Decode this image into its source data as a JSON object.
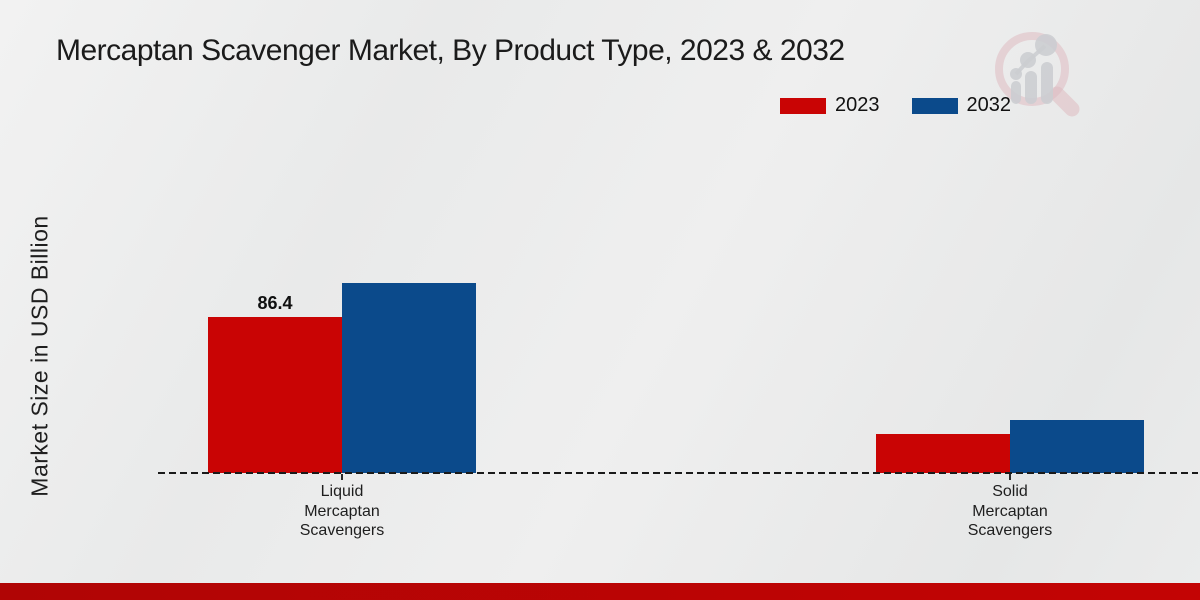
{
  "title": "Mercaptan Scavenger Market, By Product Type, 2023 & 2032",
  "ylabel": "Market Size in USD Billion",
  "chart_data": {
    "type": "bar",
    "title": "Mercaptan Scavenger Market, By Product Type, 2023 & 2032",
    "xlabel": "",
    "ylabel": "Market Size in USD Billion",
    "categories": [
      "Liquid Mercaptan Scavengers",
      "Solid Mercaptan Scavengers"
    ],
    "category_lines": [
      [
        "Liquid",
        "Mercaptan",
        "Scavengers"
      ],
      [
        "Solid",
        "Mercaptan",
        "Scavengers"
      ]
    ],
    "series": [
      {
        "name": "2023",
        "color": "#c90404",
        "values": [
          86.4,
          21.6
        ],
        "labels": [
          "86.4",
          ""
        ]
      },
      {
        "name": "2032",
        "color": "#0b4a8b",
        "values": [
          105.2,
          29.3
        ],
        "labels": [
          "",
          ""
        ]
      }
    ],
    "ylim": [
      0,
      120
    ],
    "grid": false,
    "legend_position": "top-right",
    "baseline_style": "dashed",
    "axis_ticks_shown": false
  },
  "legend": {
    "items": [
      {
        "label": "2023",
        "color": "#c90404"
      },
      {
        "label": "2032",
        "color": "#0b4a8b"
      }
    ]
  },
  "logo": {
    "name": "market-research-watermark",
    "ring_color": "#dcb3b9",
    "bars_color": "#c7c9cd"
  },
  "footer": {
    "bar_color_left": "#b00505",
    "bar_color_right": "#c30404"
  }
}
